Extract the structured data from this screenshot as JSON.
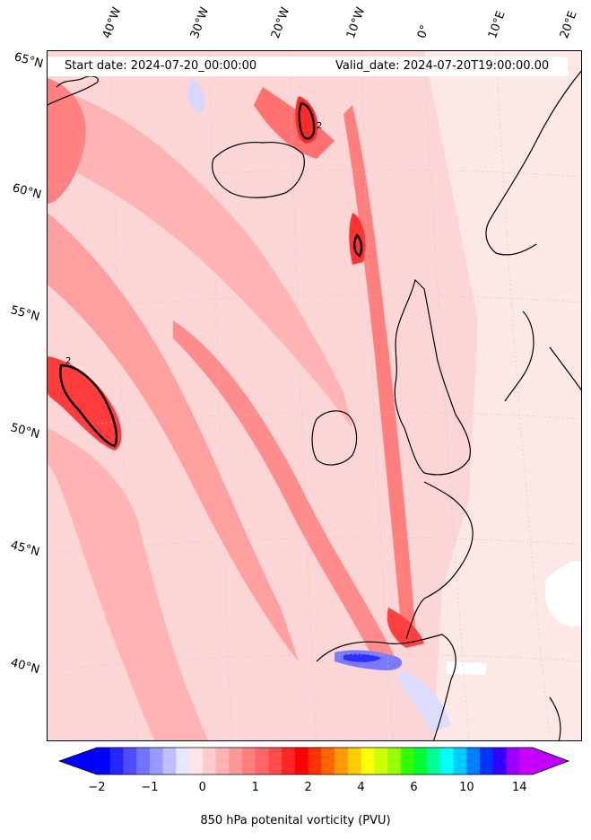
{
  "header": {
    "start_date": "Start date: 2024-07-20_00:00:00",
    "valid_date": "Valid_date: 2024-07-20T19:00:00.00"
  },
  "map": {
    "lat_labels": [
      "65°N",
      "60°N",
      "55°N",
      "50°N",
      "45°N",
      "40°N"
    ],
    "lon_labels": [
      "40°W",
      "30°W",
      "20°W",
      "10°W",
      "0°",
      "10°E",
      "20°E"
    ],
    "contour_label": "2",
    "features": [
      "iceland",
      "british-isles",
      "norway",
      "iberia",
      "france",
      "greenland-coast"
    ]
  },
  "colorbar": {
    "label": "850 hPa potenital vorticity (PVU)",
    "ticks": [
      "−2",
      "−1",
      "0",
      "1",
      "2",
      "4",
      "6",
      "10",
      "14"
    ],
    "colors": [
      "#0000ff",
      "#2626ff",
      "#4d4dff",
      "#7373ff",
      "#9999ff",
      "#bfbfff",
      "#e6e6ff",
      "#ffe6e6",
      "#ffcccc",
      "#ffb3b3",
      "#ff9999",
      "#ff7f7f",
      "#ff6666",
      "#ff4d4d",
      "#ff2626",
      "#ff0000",
      "#ff3300",
      "#ff6600",
      "#ff9900",
      "#ffcc00",
      "#ffff00",
      "#ccff00",
      "#99ff00",
      "#33ff00",
      "#00ff33",
      "#00ff99",
      "#00ffff",
      "#00ccff",
      "#0080ff",
      "#0033ff",
      "#3300ff",
      "#9900ff",
      "#cc00ff"
    ],
    "under_color": "#0000ff",
    "over_color": "#bf00ff"
  }
}
